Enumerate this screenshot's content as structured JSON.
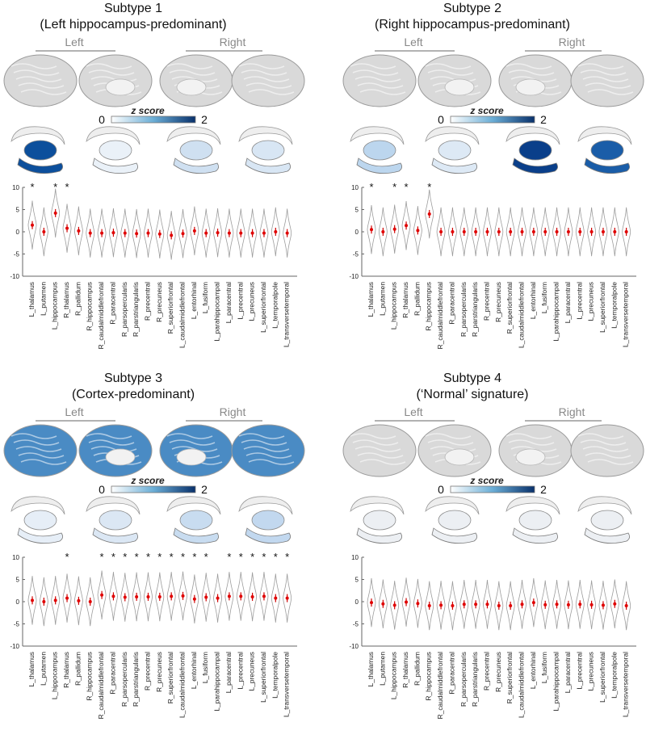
{
  "colorbar": {
    "label": "z score",
    "min": "0",
    "max": "2",
    "low_color": "#ffffff",
    "high_color": "#08306b"
  },
  "hemi_labels": {
    "left": "Left",
    "right": "Right"
  },
  "y_ticks": [
    "10",
    "5",
    "0",
    "-5",
    "-10"
  ],
  "star": "*",
  "panels": [
    {
      "title": "Subtype 1",
      "subtitle": "(Left hippocampus-predominant)",
      "cortex_color": "#d9d9d9",
      "subcortical_colors": [
        "#0c4f9c",
        "#eaf1f8",
        "#cfe0f1",
        "#d8e6f4"
      ],
      "regions": [
        "L_thalamus",
        "L_putamen",
        "L_hippocampus",
        "R_thalamus",
        "R_pallidum",
        "R_hippocampus",
        "R_caudalmiddlefrontal",
        "R_paracentral",
        "R_parsopercularis",
        "R_parstriangularis",
        "R_precentral",
        "R_precuneus",
        "R_superiorfrontal",
        "L_caudalmiddlefrontal",
        "L_entorhinal",
        "L_fusiform",
        "L_parahippocampal",
        "L_paracentral",
        "L_precentral",
        "L_precuneus",
        "L_superiorfrontal",
        "L_temporalpole",
        "L_transversetemporal"
      ],
      "medians": [
        1.5,
        0.0,
        4.2,
        0.8,
        0.2,
        -0.3,
        -0.3,
        -0.2,
        -0.3,
        -0.4,
        -0.3,
        -0.5,
        -0.8,
        -0.4,
        0.2,
        -0.3,
        -0.2,
        -0.3,
        -0.3,
        -0.3,
        -0.3,
        0.0,
        -0.3
      ],
      "significant": [
        1,
        0,
        1,
        1,
        0,
        0,
        0,
        0,
        0,
        0,
        0,
        0,
        0,
        0,
        0,
        0,
        0,
        0,
        0,
        0,
        0,
        0,
        0
      ]
    },
    {
      "title": "Subtype 2",
      "subtitle": "(Right hippocampus-predominant)",
      "cortex_color": "#d9d9d9",
      "subcortical_colors": [
        "#bcd6ee",
        "#dde9f5",
        "#0a3f8a",
        "#1a5da8"
      ],
      "regions": [
        "L_thalamus",
        "L_putamen",
        "L_hippocampus",
        "R_thalamus",
        "R_pallidum",
        "R_hippocampus",
        "R_caudalmiddlefrontal",
        "R_paracentral",
        "R_parsopercularis",
        "R_parstriangularis",
        "R_precentral",
        "R_precuneus",
        "R_superiorfrontal",
        "L_caudalmiddlefrontal",
        "L_entorhinal",
        "L_fusiform",
        "L_parahippocampal",
        "L_paracentral",
        "L_precentral",
        "L_precuneus",
        "L_superiorfrontal",
        "L_temporalpole",
        "L_transversetemporal"
      ],
      "medians": [
        0.5,
        0.0,
        0.6,
        1.4,
        0.3,
        4.0,
        0.0,
        0.0,
        0.0,
        0.0,
        0.0,
        0.0,
        0.0,
        0.0,
        0.0,
        0.0,
        0.0,
        0.0,
        0.0,
        0.0,
        0.0,
        0.0,
        0.0
      ],
      "significant": [
        1,
        0,
        1,
        1,
        0,
        1,
        0,
        0,
        0,
        0,
        0,
        0,
        0,
        0,
        0,
        0,
        0,
        0,
        0,
        0,
        0,
        0,
        0
      ]
    },
    {
      "title": "Subtype 3",
      "subtitle": "(Cortex-predominant)",
      "cortex_color": "#4a8bc4",
      "subcortical_colors": [
        "#e6eef7",
        "#dbe7f4",
        "#c8dcf0",
        "#c2d8ef"
      ],
      "regions": [
        "L_thalamus",
        "L_putamen",
        "L_hippocampus",
        "R_thalamus",
        "R_pallidum",
        "R_hippocampus",
        "R_caudalmiddlefrontal",
        "R_paracentral",
        "R_parsopercularis",
        "R_parstriangularis",
        "R_precentral",
        "R_precuneus",
        "R_superiorfrontal",
        "L_caudalmiddlefrontal",
        "L_entorhinal",
        "L_fusiform",
        "L_parahippocampal",
        "L_paracentral",
        "L_precentral",
        "L_precuneus",
        "L_superiorfrontal",
        "L_temporalpole",
        "L_transversetemporal"
      ],
      "medians": [
        0.3,
        0.0,
        0.3,
        0.8,
        0.2,
        0.0,
        1.5,
        1.2,
        1.0,
        1.1,
        1.1,
        1.1,
        1.2,
        1.3,
        0.6,
        1.0,
        0.8,
        1.2,
        1.2,
        1.1,
        1.2,
        0.8,
        0.8
      ],
      "significant": [
        0,
        0,
        0,
        1,
        0,
        0,
        1,
        1,
        1,
        1,
        1,
        1,
        1,
        1,
        1,
        1,
        0,
        1,
        1,
        1,
        1,
        1,
        1
      ]
    },
    {
      "title": "Subtype 4",
      "subtitle": "(‘Normal’ signature)",
      "cortex_color": "#d9d9d9",
      "subcortical_colors": [
        "#eceff3",
        "#eceff3",
        "#eceff3",
        "#eceff3"
      ],
      "regions": [
        "L_thalamus",
        "L_putamen",
        "L_hippocampus",
        "R_thalamus",
        "R_pallidum",
        "R_hippocampus",
        "R_caudalmiddlefrontal",
        "R_paracentral",
        "R_parsopercularis",
        "R_parstriangularis",
        "R_precentral",
        "R_precuneus",
        "R_superiorfrontal",
        "L_caudalmiddlefrontal",
        "L_entorhinal",
        "L_fusiform",
        "L_parahippocampal",
        "L_paracentral",
        "L_precentral",
        "L_precuneus",
        "L_superiorfrontal",
        "L_temporalpole",
        "L_transversetemporal"
      ],
      "medians": [
        -0.2,
        -0.5,
        -0.8,
        -0.1,
        -0.4,
        -0.9,
        -0.8,
        -0.9,
        -0.6,
        -0.6,
        -0.6,
        -0.9,
        -0.9,
        -0.6,
        -0.2,
        -0.7,
        -0.6,
        -0.7,
        -0.6,
        -0.7,
        -0.8,
        -0.5,
        -0.9
      ],
      "significant": [
        0,
        0,
        0,
        0,
        0,
        0,
        0,
        0,
        0,
        0,
        0,
        0,
        0,
        0,
        0,
        0,
        0,
        0,
        0,
        0,
        0,
        0,
        0
      ]
    }
  ],
  "chart_data": [
    {
      "type": "violin",
      "title": "Subtype 1",
      "ylim": [
        -10,
        10
      ],
      "yticks": [
        10,
        5,
        0,
        -5,
        -10
      ]
    },
    {
      "type": "violin",
      "title": "Subtype 2",
      "ylim": [
        -10,
        10
      ],
      "yticks": [
        10,
        5,
        0,
        -5,
        -10
      ]
    },
    {
      "type": "violin",
      "title": "Subtype 3",
      "ylim": [
        -10,
        10
      ],
      "yticks": [
        10,
        5,
        0,
        -5,
        -10
      ]
    },
    {
      "type": "violin",
      "title": "Subtype 4",
      "ylim": [
        -10,
        10
      ],
      "yticks": [
        10,
        5,
        0,
        -5,
        -10
      ]
    }
  ]
}
